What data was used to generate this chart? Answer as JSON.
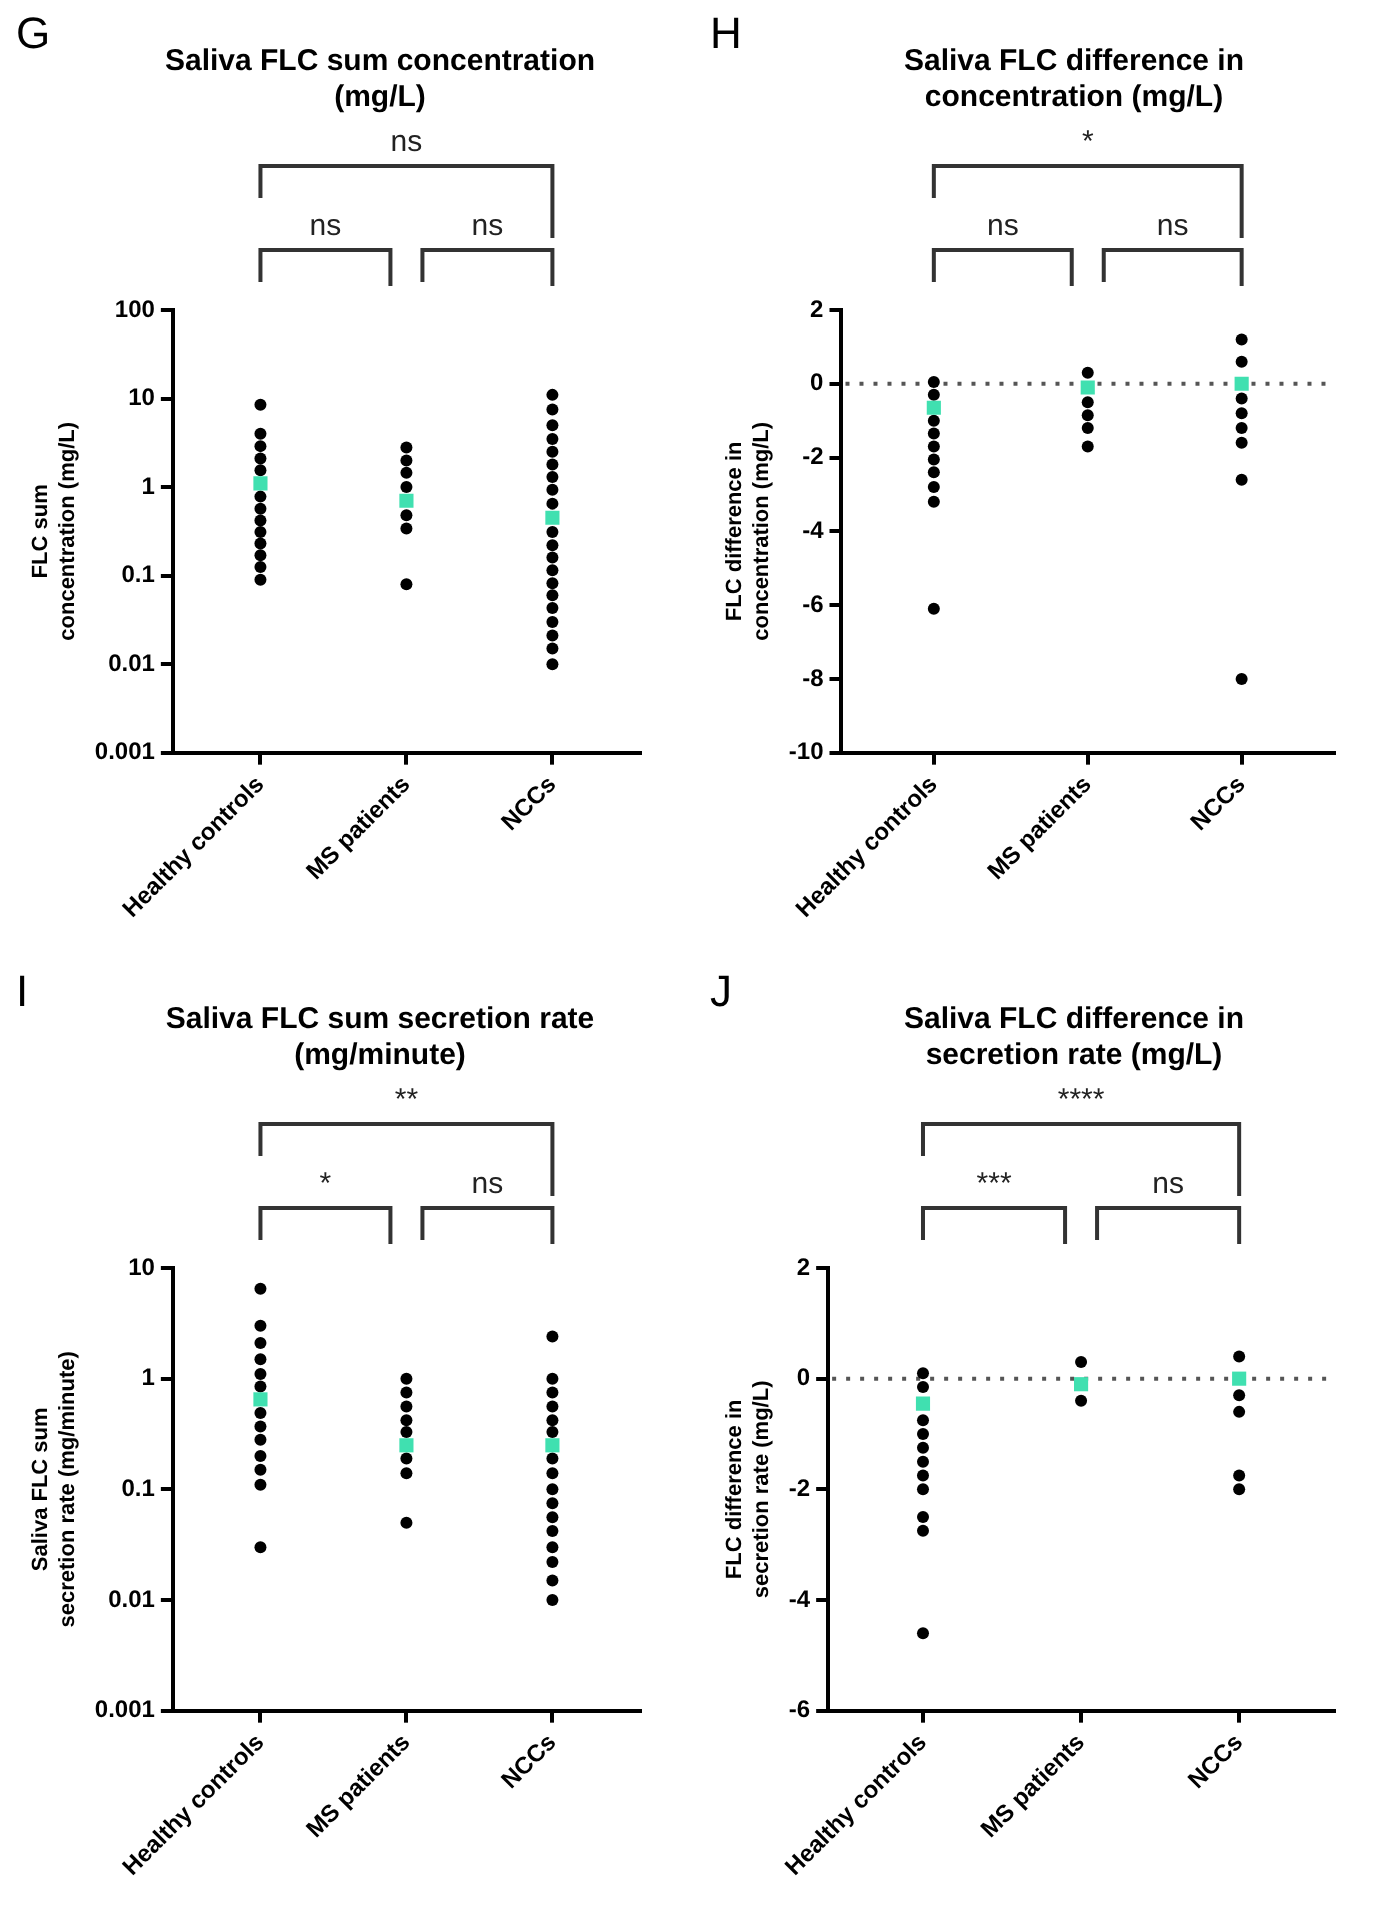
{
  "chart_data": [
    {
      "type": "scatter",
      "title": "Saliva FLC sum concentration (mg/L)",
      "ylabel": "FLC sum concentration (mg/L)",
      "categories": [
        "Healthy controls",
        "MS patients",
        "NCCs"
      ],
      "log": "y",
      "ylim": [
        0.001,
        100
      ],
      "yticks": [
        0.001,
        0.01,
        0.1,
        1,
        10,
        100
      ],
      "legend": false,
      "annotations": [
        "G",
        "ns",
        "ns",
        "ns"
      ],
      "series": [
        {
          "type": "scatter",
          "marker": "circle",
          "color": "#000000",
          "x": [
            "Healthy controls",
            "Healthy controls",
            "Healthy controls",
            "Healthy controls",
            "Healthy controls",
            "Healthy controls",
            "Healthy controls",
            "Healthy controls",
            "Healthy controls",
            "Healthy controls",
            "Healthy controls",
            "Healthy controls",
            "Healthy controls",
            "MS patients",
            "MS patients",
            "MS patients",
            "MS patients",
            "MS patients",
            "MS patients",
            "MS patients",
            "NCCs",
            "NCCs",
            "NCCs",
            "NCCs",
            "NCCs",
            "NCCs",
            "NCCs",
            "NCCs",
            "NCCs",
            "NCCs",
            "NCCs",
            "NCCs",
            "NCCs",
            "NCCs",
            "NCCs",
            "NCCs",
            "NCCs",
            "NCCs",
            "NCCs",
            "NCCs"
          ],
          "values": [
            8.5,
            4,
            2.9,
            2.1,
            1.55,
            0.78,
            0.57,
            0.42,
            0.31,
            0.23,
            0.17,
            0.125,
            0.09,
            2.8,
            2,
            1.45,
            1,
            0.48,
            0.34,
            0.08,
            11,
            7.5,
            5,
            3.5,
            2.5,
            1.8,
            1.3,
            0.93,
            0.65,
            0.31,
            0.22,
            0.16,
            0.115,
            0.082,
            0.06,
            0.043,
            0.03,
            0.021,
            0.015,
            0.01
          ]
        },
        {
          "type": "scatter",
          "marker": "square",
          "color": "#40e0b0",
          "x": [
            "Healthy controls",
            "MS patients",
            "NCCs"
          ],
          "values": [
            1.1,
            0.7,
            0.45
          ]
        }
      ]
    },
    {
      "type": "scatter",
      "title": "Saliva FLC difference in concentration (mg/L)",
      "ylabel": "FLC difference in concentration (mg/L)",
      "categories": [
        "Healthy controls",
        "MS patients",
        "NCCs"
      ],
      "ylim": [
        -10,
        2
      ],
      "yticks": [
        -10,
        -8,
        -6,
        -4,
        -2,
        0,
        2
      ],
      "legend": false,
      "annotations": [
        "H",
        "ns",
        "ns",
        "*"
      ],
      "ref_lines": [
        {
          "axis": "y",
          "value": 0,
          "line_style": "dotted"
        }
      ],
      "series": [
        {
          "type": "scatter",
          "marker": "circle",
          "color": "#000000",
          "x": [
            "Healthy controls",
            "Healthy controls",
            "Healthy controls",
            "Healthy controls",
            "Healthy controls",
            "Healthy controls",
            "Healthy controls",
            "Healthy controls",
            "Healthy controls",
            "Healthy controls",
            "MS patients",
            "MS patients",
            "MS patients",
            "MS patients",
            "MS patients",
            "NCCs",
            "NCCs",
            "NCCs",
            "NCCs",
            "NCCs",
            "NCCs",
            "NCCs",
            "NCCs"
          ],
          "values": [
            0.05,
            -0.3,
            -1,
            -1.35,
            -1.7,
            -2.05,
            -2.4,
            -2.8,
            -3.2,
            -6.1,
            0.3,
            -0.5,
            -0.85,
            -1.2,
            -1.7,
            1.2,
            0.6,
            -0.4,
            -0.8,
            -1.2,
            -1.6,
            -2.6,
            -8
          ]
        },
        {
          "type": "scatter",
          "marker": "square",
          "color": "#40e0b0",
          "x": [
            "Healthy controls",
            "MS patients",
            "NCCs"
          ],
          "values": [
            -0.65,
            -0.1,
            0
          ]
        }
      ]
    },
    {
      "type": "scatter",
      "title": "Saliva FLC sum secretion rate (mg/minute)",
      "ylabel": "Saliva FLC sum secretion rate (mg/minute)",
      "categories": [
        "Healthy controls",
        "MS patients",
        "NCCs"
      ],
      "log": "y",
      "ylim": [
        0.001,
        10
      ],
      "yticks": [
        0.001,
        0.01,
        0.1,
        1,
        10
      ],
      "legend": false,
      "annotations": [
        "I",
        "*",
        "ns",
        "**"
      ],
      "series": [
        {
          "type": "scatter",
          "marker": "circle",
          "color": "#000000",
          "x": [
            "Healthy controls",
            "Healthy controls",
            "Healthy controls",
            "Healthy controls",
            "Healthy controls",
            "Healthy controls",
            "Healthy controls",
            "Healthy controls",
            "Healthy controls",
            "Healthy controls",
            "Healthy controls",
            "Healthy controls",
            "Healthy controls",
            "MS patients",
            "MS patients",
            "MS patients",
            "MS patients",
            "MS patients",
            "MS patients",
            "MS patients",
            "MS patients",
            "NCCs",
            "NCCs",
            "NCCs",
            "NCCs",
            "NCCs",
            "NCCs",
            "NCCs",
            "NCCs",
            "NCCs",
            "NCCs",
            "NCCs",
            "NCCs",
            "NCCs",
            "NCCs",
            "NCCs",
            "NCCs"
          ],
          "values": [
            6.5,
            3,
            2.1,
            1.5,
            1.1,
            0.85,
            0.49,
            0.37,
            0.28,
            0.2,
            0.15,
            0.11,
            0.03,
            1,
            0.75,
            0.56,
            0.42,
            0.33,
            0.19,
            0.14,
            0.05,
            2.4,
            1,
            0.75,
            0.56,
            0.42,
            0.33,
            0.19,
            0.14,
            0.1,
            0.075,
            0.056,
            0.042,
            0.03,
            0.022,
            0.015,
            0.01
          ]
        },
        {
          "type": "scatter",
          "marker": "square",
          "color": "#40e0b0",
          "x": [
            "Healthy controls",
            "MS patients",
            "NCCs"
          ],
          "values": [
            0.65,
            0.25,
            0.25
          ]
        }
      ]
    },
    {
      "type": "scatter",
      "title": "Saliva FLC difference in secretion rate (mg/L)",
      "ylabel": "FLC difference in secretion rate (mg/L)",
      "categories": [
        "Healthy controls",
        "MS patients",
        "NCCs"
      ],
      "ylim": [
        -6,
        2
      ],
      "yticks": [
        -6,
        -4,
        -2,
        0,
        2
      ],
      "legend": false,
      "annotations": [
        "J",
        "***",
        "ns",
        "****"
      ],
      "ref_lines": [
        {
          "axis": "y",
          "value": 0,
          "line_style": "dotted"
        }
      ],
      "series": [
        {
          "type": "scatter",
          "marker": "circle",
          "color": "#000000",
          "x": [
            "Healthy controls",
            "Healthy controls",
            "Healthy controls",
            "Healthy controls",
            "Healthy controls",
            "Healthy controls",
            "Healthy controls",
            "Healthy controls",
            "Healthy controls",
            "Healthy controls",
            "Healthy controls",
            "MS patients",
            "MS patients",
            "NCCs",
            "NCCs",
            "NCCs",
            "NCCs",
            "NCCs"
          ],
          "values": [
            0.1,
            -0.15,
            -0.75,
            -1,
            -1.25,
            -1.5,
            -1.75,
            -2,
            -2.5,
            -2.75,
            -4.6,
            0.3,
            -0.4,
            0.4,
            -0.3,
            -0.6,
            -1.75,
            -2
          ]
        },
        {
          "type": "scatter",
          "marker": "square",
          "color": "#40e0b0",
          "x": [
            "Healthy controls",
            "MS patients",
            "NCCs"
          ],
          "values": [
            -0.45,
            -0.1,
            0
          ]
        }
      ]
    }
  ]
}
